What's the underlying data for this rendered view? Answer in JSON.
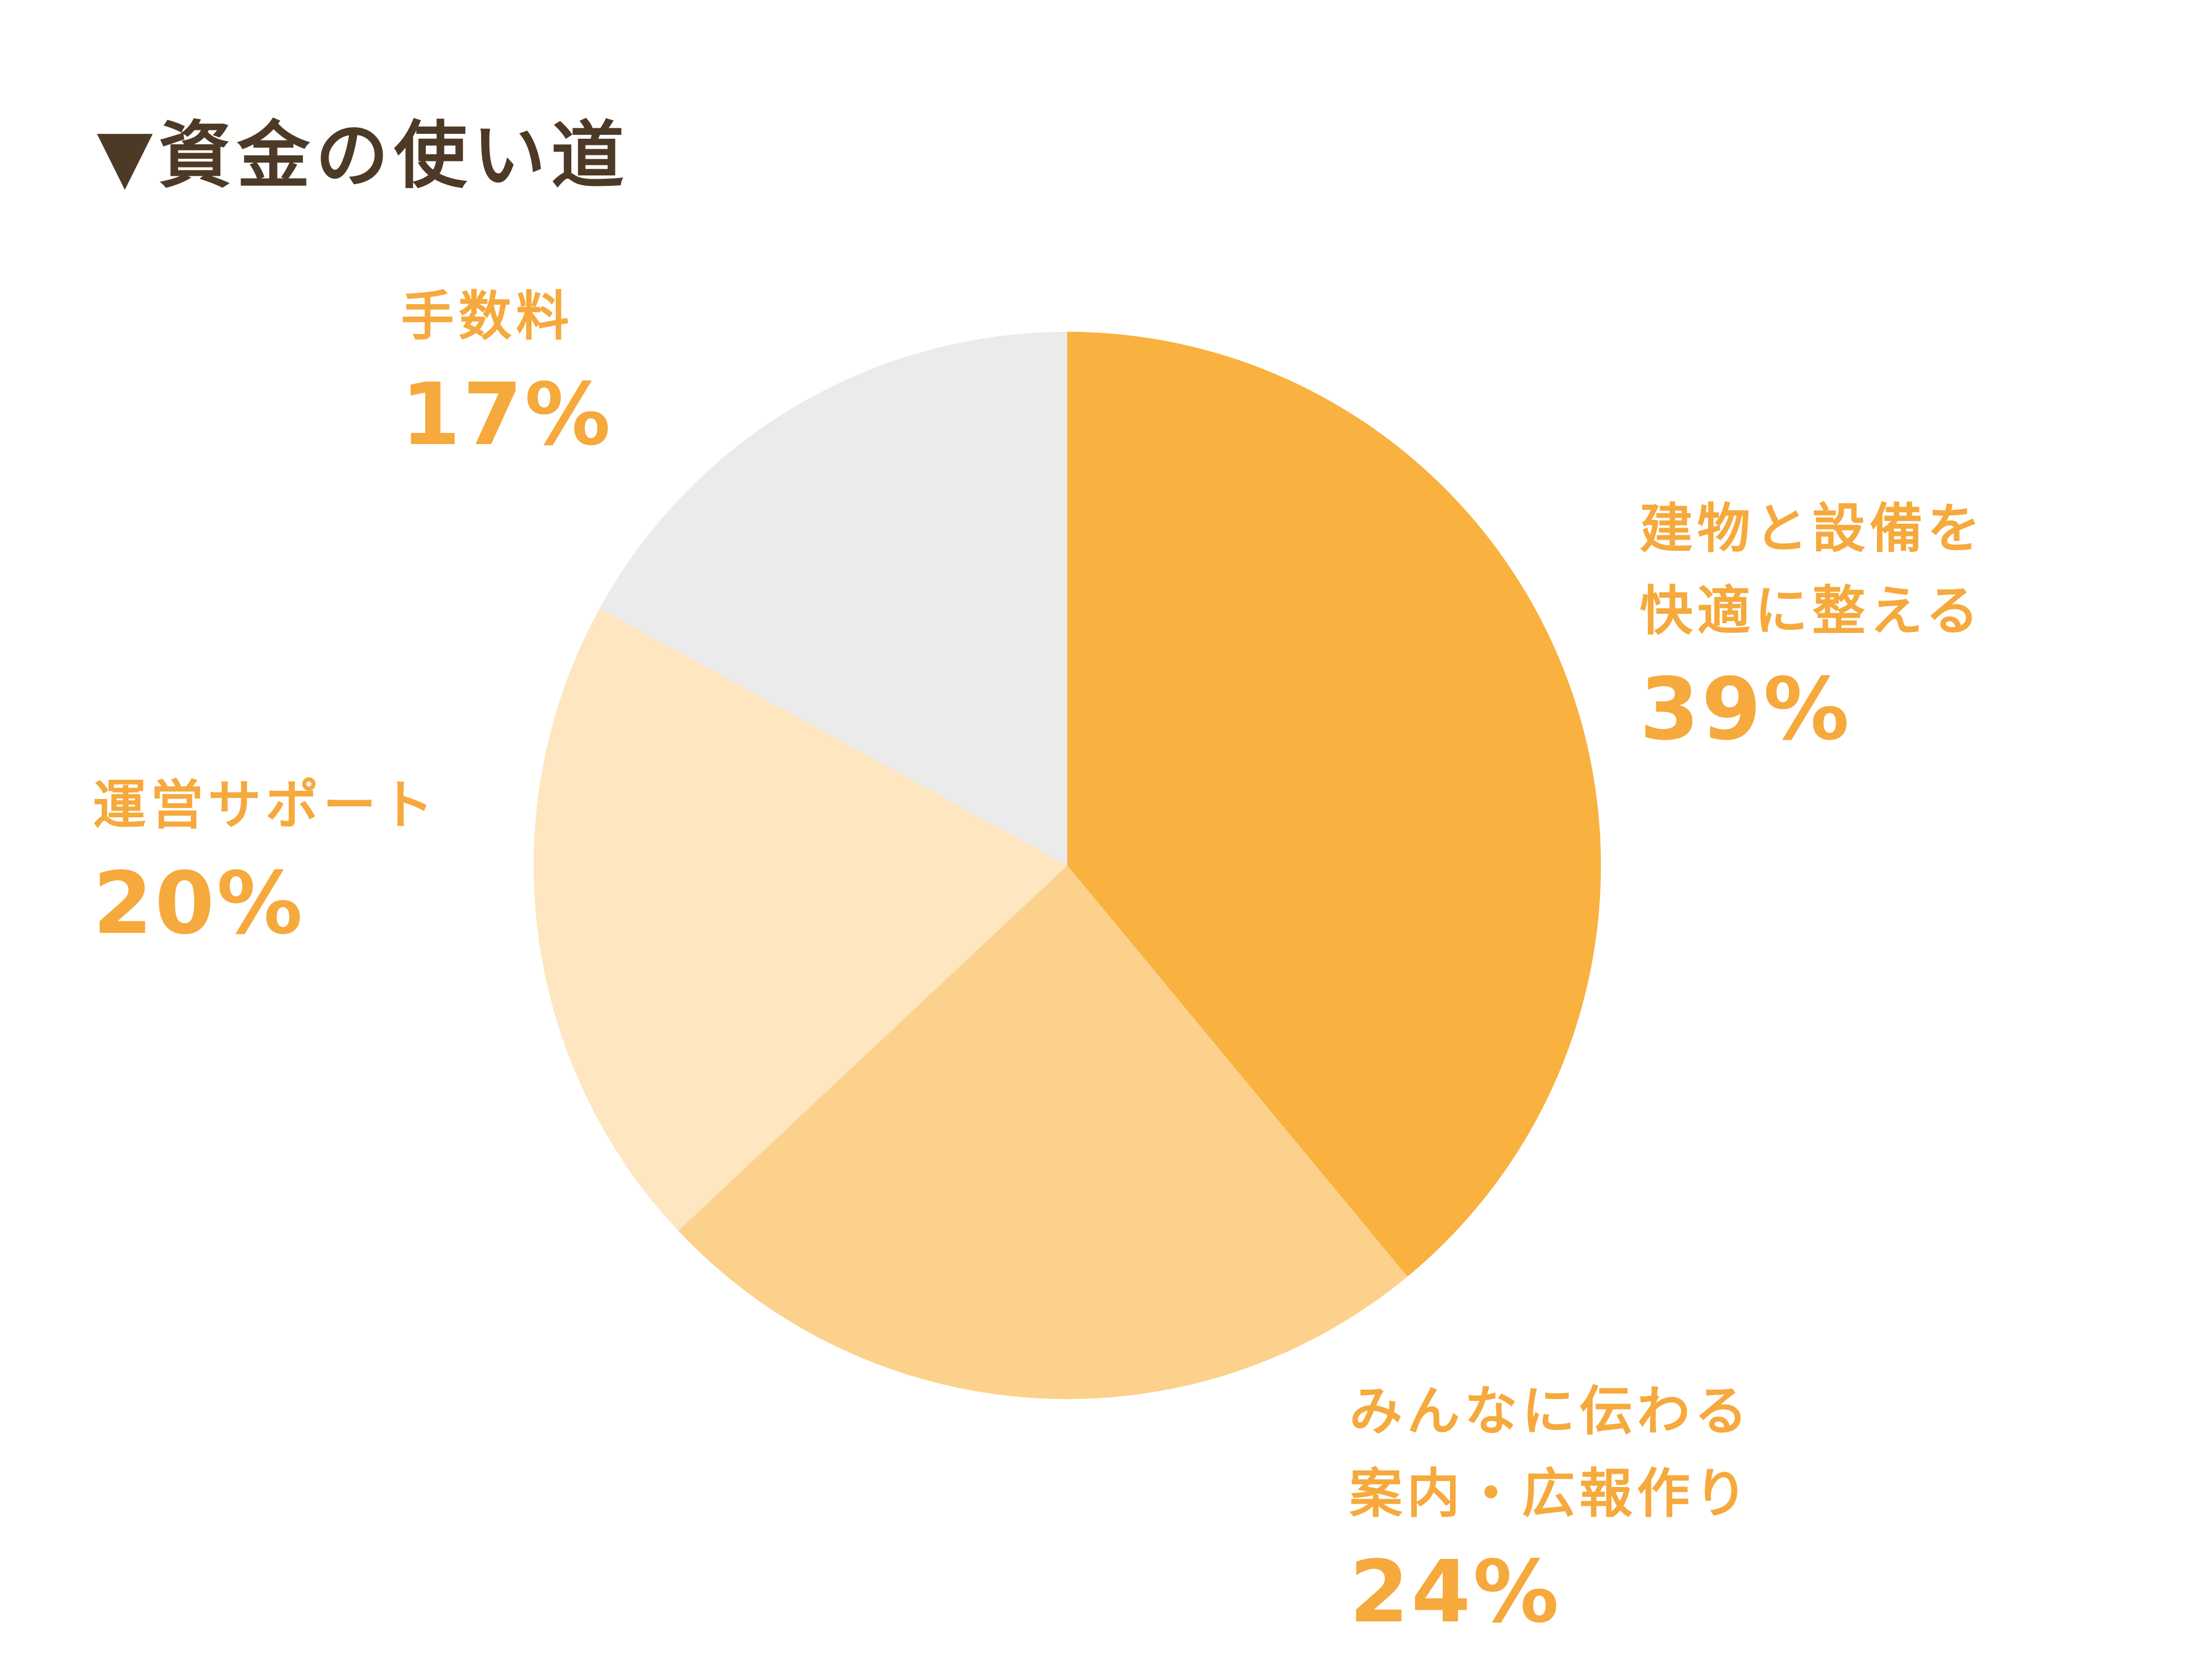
{
  "title": "▼資金の使い道",
  "colors": {
    "title_text": "#4d3a26",
    "label_text": "#f6a93c",
    "slice_main": "#f9b13f",
    "slice_mid": "#fcd18c",
    "slice_light": "#fde6c0",
    "slice_gray": "#ebebeb",
    "background": "#ffffff"
  },
  "chart_data": {
    "type": "pie",
    "title": "資金の使い道",
    "start_angle_deg": 0,
    "direction": "clockwise",
    "legend_position": "around",
    "slices": [
      {
        "label": "建物と設備を快適に整える",
        "value": 39,
        "color": "#f9b13f"
      },
      {
        "label": "みんなに伝わる案内・広報作り",
        "value": 24,
        "color": "#fcd18c"
      },
      {
        "label": "運営サポート",
        "value": 20,
        "color": "#fde6c0"
      },
      {
        "label": "手数料",
        "value": 17,
        "color": "#ebebeb"
      }
    ]
  },
  "annotations": {
    "fee": {
      "lines": [
        "手数料"
      ],
      "pct": "17%"
    },
    "building": {
      "lines": [
        "建物と設備を",
        "快適に整える"
      ],
      "pct": "39%"
    },
    "support": {
      "lines": [
        "運営サポート"
      ],
      "pct": "20%"
    },
    "pr": {
      "lines": [
        "みんなに伝わる",
        "案内・広報作り"
      ],
      "pct": "24%"
    }
  }
}
